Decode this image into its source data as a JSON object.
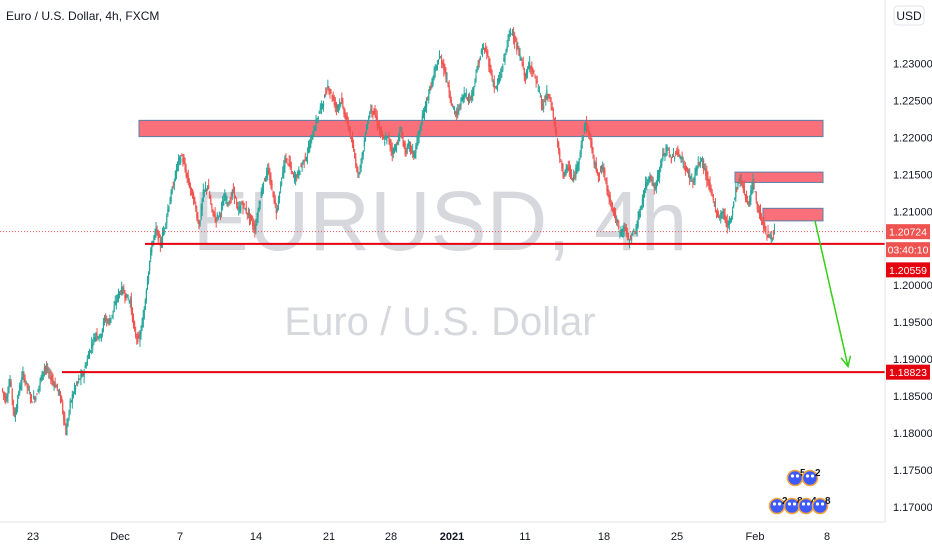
{
  "chart_data": {
    "type": "candlestick",
    "title": "Euro / U.S. Dollar, 4h, FXCM",
    "watermark_symbol": "EURUSD, 4h",
    "watermark_name": "Euro / U.S. Dollar",
    "currency_button": "USD",
    "y_ticks": [
      "1.23000",
      "1.22500",
      "1.22000",
      "1.21500",
      "1.21000",
      "1.20000",
      "1.19500",
      "1.19000",
      "1.18500",
      "1.18000",
      "1.17500",
      "1.17000"
    ],
    "x_ticks": [
      {
        "label": "23",
        "bold": false
      },
      {
        "label": "Dec",
        "bold": false
      },
      {
        "label": "7",
        "bold": false
      },
      {
        "label": "14",
        "bold": false
      },
      {
        "label": "21",
        "bold": false
      },
      {
        "label": "28",
        "bold": false
      },
      {
        "label": "2021",
        "bold": true
      },
      {
        "label": "11",
        "bold": false
      },
      {
        "label": "18",
        "bold": false
      },
      {
        "label": "25",
        "bold": false
      },
      {
        "label": "Feb",
        "bold": false
      },
      {
        "label": "8",
        "bold": false
      }
    ],
    "price_labels": {
      "last_price": "1.20724",
      "countdown": "03:40:10",
      "support_level": "1.20559",
      "target_level": "1.18823"
    },
    "ylim": [
      1.1685,
      1.2375
    ],
    "price_path": [
      [
        1.186,
        1.1845,
        1.1872,
        1.182,
        1.1855,
        1.188,
        1.1862,
        1.1845,
        1.185,
        1.187,
        1.189,
        1.188,
        1.187,
        1.186,
        1.1842,
        1.18,
        1.184,
        1.186,
        1.1872,
        1.188,
        1.19,
        1.192,
        1.1935,
        1.193,
        1.1955,
        1.195,
        1.1965,
        1.1985,
        1.1995,
        1.1985,
        1.1978,
        1.1935,
        1.1925,
        1.1955,
        1.201,
        1.2055,
        1.2075,
        1.2055
      ],
      [
        1.208,
        1.211,
        1.2135,
        1.2165,
        1.2175,
        1.215,
        1.213,
        1.211,
        1.208,
        1.2125,
        1.2135,
        1.21,
        1.209,
        1.21,
        1.212,
        1.211,
        1.213,
        1.21,
        1.211,
        1.21,
        1.209,
        1.2075
      ],
      [
        1.211,
        1.214,
        1.2155,
        1.213,
        1.21,
        1.2135,
        1.217,
        1.2165,
        1.2145,
        1.215,
        1.2165,
        1.2175,
        1.2195,
        1.2215,
        1.2235,
        1.225,
        1.227,
        1.2255,
        1.224,
        1.225,
        1.223,
        1.221,
        1.218,
        1.215,
        1.2175,
        1.2215,
        1.224,
        1.223,
        1.221,
        1.2195,
        1.22,
        1.218,
        1.219,
        1.221,
        1.218,
        1.219,
        1.2175
      ],
      [
        1.22,
        1.2225,
        1.225,
        1.227,
        1.229,
        1.231,
        1.2295,
        1.227,
        1.224,
        1.223,
        1.225,
        1.226,
        1.225,
        1.227,
        1.23,
        1.232,
        1.2315,
        1.2285,
        1.2265,
        1.228,
        1.2305,
        1.2335,
        1.2345,
        1.232,
        1.2305,
        1.228,
        1.23,
        1.2285,
        1.2265,
        1.224,
        1.226,
        1.2245,
        1.221
      ],
      [
        1.217,
        1.215,
        1.216,
        1.214,
        1.216,
        1.219,
        1.222,
        1.22,
        1.2165,
        1.215,
        1.216,
        1.213,
        1.211,
        1.209,
        1.207,
        1.208,
        1.206,
        1.207
      ],
      [
        1.208,
        1.211,
        1.2135,
        1.215,
        1.213,
        1.215,
        1.2175,
        1.2185,
        1.217,
        1.218,
        1.2175,
        1.216,
        1.215,
        1.214,
        1.216,
        1.217,
        1.215,
        1.213,
        1.211,
        1.209,
        1.21,
        1.208,
        1.2095,
        1.213,
        1.2145,
        1.2125,
        1.211,
        1.214,
        1.2105,
        1.209,
        1.207,
        1.2065,
        1.2072
      ]
    ],
    "zones": [
      {
        "name": "resistance-zone-upper",
        "x_from": 26,
        "x_to": 178,
        "y_top": 1.2223,
        "y_bottom": 1.2201
      },
      {
        "name": "resistance-zone-middle",
        "x_from": 164,
        "x_to": 178,
        "y_top": 1.2153,
        "y_bottom": 1.2139
      },
      {
        "name": "resistance-zone-lower",
        "x_from": 167,
        "x_to": 178,
        "y_top": 1.2104,
        "y_bottom": 1.2087
      }
    ],
    "levels": [
      {
        "name": "support-line",
        "x_from": 26,
        "y": 1.20559,
        "label_key": "support_level"
      },
      {
        "name": "target-line",
        "x_from": 12,
        "y": 1.18823,
        "label_key": "target_level"
      }
    ],
    "projection_arrow": {
      "x_from": 169,
      "y_from": 1.2087,
      "x_to": 175,
      "y_to": 1.189
    },
    "reactions": [
      "5",
      "2",
      "2",
      "8",
      "4",
      "8"
    ],
    "colors": {
      "up": "#26a69a",
      "down": "#ef5350",
      "zone_fill": "#f9707b",
      "zone_border": "#5b7fa6",
      "level_line": "#e5000d",
      "arrow": "#32d015",
      "last_price_bg": "#ef5350",
      "countdown_bg": "#ef5350",
      "level_label_bg": "#e5000d"
    }
  }
}
